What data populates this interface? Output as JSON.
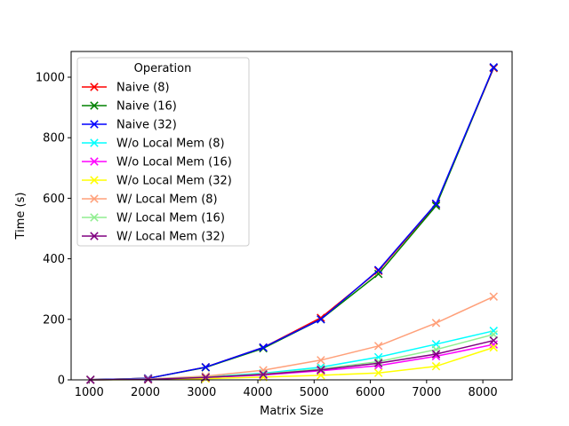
{
  "chart_data": {
    "type": "line",
    "title": "",
    "xlabel": "Matrix Size",
    "ylabel": "Time (s)",
    "xlim": [
      680,
      8520
    ],
    "ylim": [
      0,
      1085
    ],
    "x": [
      1024,
      2048,
      3072,
      4096,
      5120,
      6144,
      7168,
      8192
    ],
    "xticks": [
      1000,
      2000,
      3000,
      4000,
      5000,
      6000,
      7000,
      8000
    ],
    "yticks": [
      0,
      200,
      400,
      600,
      800,
      1000
    ],
    "grid": false,
    "legend": {
      "title": "Operation",
      "position": "top-left"
    },
    "series": [
      {
        "name": "Naive  (8)",
        "color": "#ff0000",
        "values": [
          0.6,
          5,
          42,
          107,
          205,
          360,
          580,
          1030
        ]
      },
      {
        "name": "Naive  (16)",
        "color": "#008000",
        "values": [
          0.6,
          5,
          41,
          104,
          200,
          350,
          575,
          1032
        ]
      },
      {
        "name": "Naive  (32)",
        "color": "#0000ff",
        "values": [
          0.6,
          5,
          42,
          107,
          200,
          363,
          582,
          1033
        ]
      },
      {
        "name": "W/o Local Mem  (8)",
        "color": "#00ffff",
        "values": [
          0.1,
          2,
          10,
          22,
          42,
          75,
          118,
          162
        ]
      },
      {
        "name": "W/o Local Mem  (16)",
        "color": "#ff00ff",
        "values": [
          0.1,
          1.5,
          8,
          16,
          30,
          47,
          78,
          117
        ]
      },
      {
        "name": "W/o Local Mem  (32)",
        "color": "#ffff00",
        "values": [
          0.1,
          1,
          4,
          9,
          15,
          23,
          45,
          107
        ]
      },
      {
        "name": "W/ Local Mem (8)",
        "color": "#ffa07a",
        "values": [
          0.1,
          3,
          12,
          32,
          65,
          112,
          188,
          275
        ]
      },
      {
        "name": "W/ Local Mem (16)",
        "color": "#90ee90",
        "values": [
          0.1,
          2,
          9,
          20,
          36,
          60,
          100,
          150
        ]
      },
      {
        "name": "W/ Local Mem (32)",
        "color": "#800080",
        "values": [
          0.1,
          1.5,
          8,
          18,
          33,
          55,
          85,
          130
        ]
      }
    ]
  }
}
